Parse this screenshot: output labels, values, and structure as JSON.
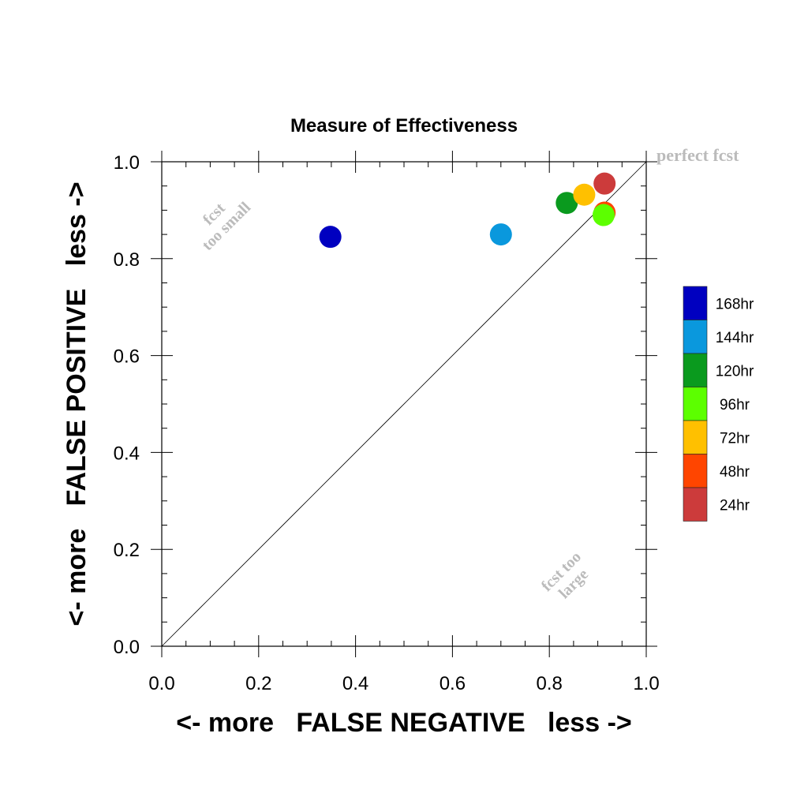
{
  "chart_data": {
    "type": "scatter",
    "title": "Measure of Effectiveness",
    "xlabel": "<- more   FALSE NEGATIVE   less ->",
    "ylabel": "<- more   FALSE POSITIVE   less ->",
    "xlim": [
      0,
      1
    ],
    "ylim": [
      0,
      1
    ],
    "x_ticks": [
      0.0,
      0.2,
      0.4,
      0.6,
      0.8,
      1.0
    ],
    "y_ticks": [
      0.0,
      0.2,
      0.4,
      0.6,
      0.8,
      1.0
    ],
    "x_tick_labels": [
      "0.0",
      "0.2",
      "0.4",
      "0.6",
      "0.8",
      "1.0"
    ],
    "y_tick_labels": [
      "0.0",
      "0.2",
      "0.4",
      "0.6",
      "0.8",
      "1.0"
    ],
    "grid": false,
    "diagonal_line": true,
    "annotations": {
      "perfect": "perfect fcst",
      "small_line1": "fcst",
      "small_line2": "too small",
      "large_line1": "fcst too",
      "large_line2": "large"
    },
    "annotation_color": "#bbbbbb",
    "legend_position": "right",
    "series": [
      {
        "name": "168hr",
        "color": "#0000c0",
        "x": 0.348,
        "y": 0.845
      },
      {
        "name": "144hr",
        "color": "#0a98dd",
        "x": 0.7,
        "y": 0.85
      },
      {
        "name": "120hr",
        "color": "#0a9a1e",
        "x": 0.836,
        "y": 0.915
      },
      {
        "name": "96hr",
        "color": "#5cff00",
        "x": 0.912,
        "y": 0.89
      },
      {
        "name": "72hr",
        "color": "#ffc000",
        "x": 0.872,
        "y": 0.932
      },
      {
        "name": "48hr",
        "color": "#ff4500",
        "x": 0.914,
        "y": 0.895
      },
      {
        "name": "24hr",
        "color": "#cc3b3b",
        "x": 0.914,
        "y": 0.955
      }
    ],
    "draw_order": [
      "168hr",
      "144hr",
      "120hr",
      "72hr",
      "24hr",
      "48hr",
      "96hr"
    ]
  }
}
